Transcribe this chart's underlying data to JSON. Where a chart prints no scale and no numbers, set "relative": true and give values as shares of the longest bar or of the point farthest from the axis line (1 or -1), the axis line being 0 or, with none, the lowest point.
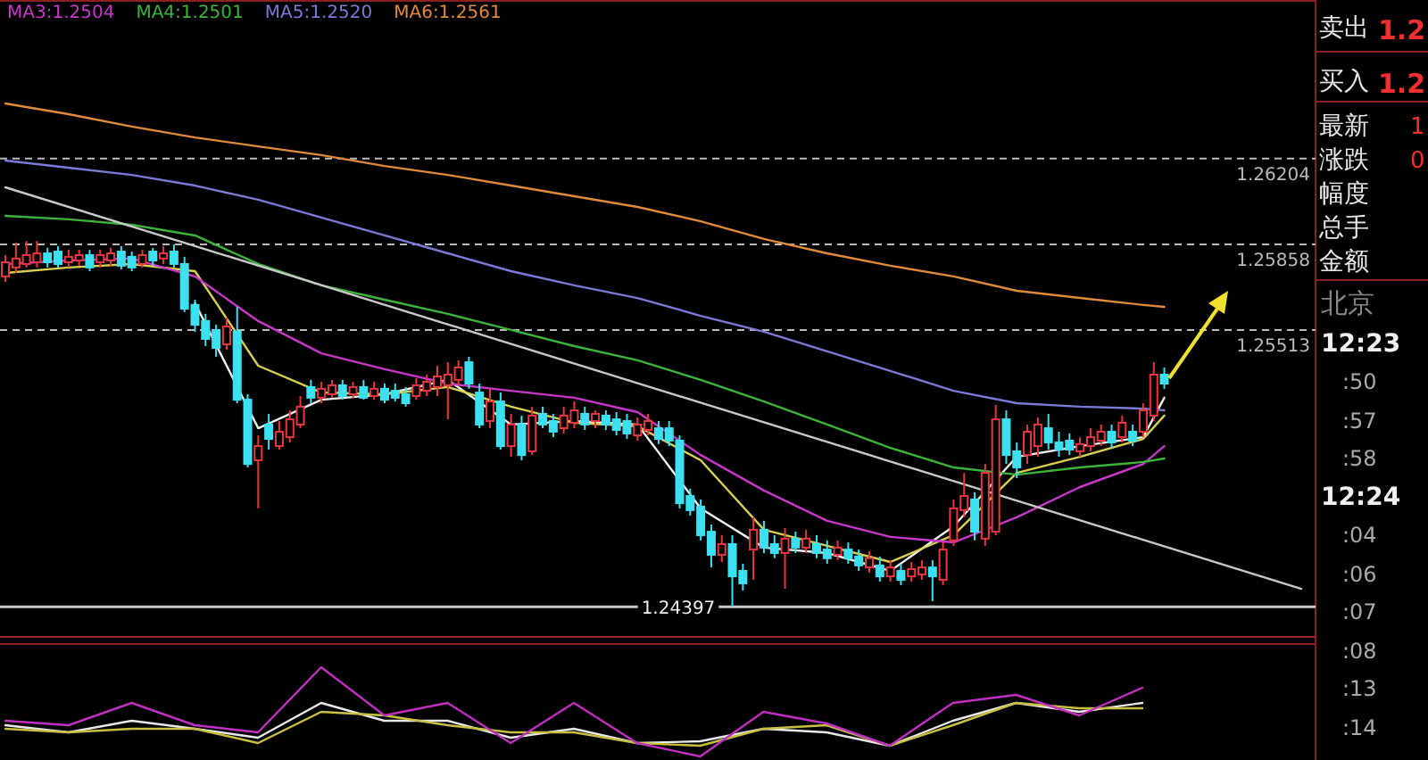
{
  "chart_data": [
    {
      "type": "candlestick",
      "categories": [
        null,
        null,
        null,
        null,
        null,
        null,
        null,
        null,
        null,
        null,
        null,
        null,
        null,
        null,
        null,
        null,
        null,
        null,
        null,
        null,
        null,
        null,
        null,
        null,
        null,
        null,
        null,
        null,
        null,
        null,
        null,
        null,
        null,
        null,
        null,
        null,
        null,
        null,
        null,
        null,
        null,
        null,
        null,
        null,
        null,
        null,
        null,
        null,
        null,
        null,
        null,
        null,
        null,
        null,
        null,
        null,
        null,
        null,
        null,
        null,
        null,
        null,
        null,
        null,
        null,
        null,
        null,
        null,
        null,
        null,
        null,
        null,
        null,
        null,
        null,
        null,
        null,
        null,
        null,
        null,
        null,
        null,
        null,
        null,
        null,
        null,
        null,
        null,
        null,
        null,
        null,
        null,
        null,
        null,
        null,
        null,
        null,
        null,
        null,
        null,
        null,
        null,
        null,
        null,
        null,
        null,
        null,
        null,
        null,
        null,
        null,
        null,
        null,
        null,
        null,
        null,
        null,
        null,
        null,
        null,
        null,
        null,
        null,
        null
      ],
      "ohlc": [
        [
          1.25729,
          1.25815,
          1.25707,
          1.25786
        ],
        [
          1.25765,
          1.25865,
          1.25743,
          1.25801
        ],
        [
          1.25779,
          1.25872,
          1.25765,
          1.25815
        ],
        [
          1.25786,
          1.25872,
          1.25765,
          1.25822
        ],
        [
          1.25822,
          1.25844,
          1.25765,
          1.25786
        ],
        [
          1.25829,
          1.25851,
          1.25765,
          1.25779
        ],
        [
          1.25786,
          1.25836,
          1.25765,
          1.25808
        ],
        [
          1.25793,
          1.25836,
          1.25772,
          1.25815
        ],
        [
          1.25815,
          1.25836,
          1.2575,
          1.25765
        ],
        [
          1.25786,
          1.25836,
          1.25765,
          1.25815
        ],
        [
          1.25793,
          1.25844,
          1.25772,
          1.25822
        ],
        [
          1.25829,
          1.25851,
          1.25757,
          1.25772
        ],
        [
          1.25808,
          1.25829,
          1.2575,
          1.25765
        ],
        [
          1.25779,
          1.25836,
          1.25765,
          1.25815
        ],
        [
          1.25829,
          1.25844,
          1.25772,
          1.25793
        ],
        [
          1.25801,
          1.25851,
          1.25779,
          1.25822
        ],
        [
          1.25829,
          1.25858,
          1.25765,
          1.25779
        ],
        [
          1.25779,
          1.25808,
          1.25585,
          1.25599
        ],
        [
          1.25614,
          1.25635,
          1.25506,
          1.25534
        ],
        [
          1.25549,
          1.25578,
          1.25448,
          1.25477
        ],
        [
          1.25513,
          1.25534,
          1.25405,
          1.25441
        ],
        [
          1.25455,
          1.25563,
          1.25434,
          1.25527
        ],
        [
          1.25506,
          1.25606,
          1.25218,
          1.25232
        ],
        [
          1.25232,
          1.25254,
          1.24959,
          1.24973
        ],
        [
          1.24988,
          1.25088,
          1.24794,
          1.25045
        ],
        [
          1.25132,
          1.25175,
          1.25031,
          1.25074
        ],
        [
          1.25045,
          1.25146,
          1.25031,
          1.25103
        ],
        [
          1.25081,
          1.25189,
          1.2506,
          1.25153
        ],
        [
          1.25132,
          1.25247,
          1.25117,
          1.25204
        ],
        [
          1.25283,
          1.25312,
          1.25218,
          1.2524
        ],
        [
          1.2524,
          1.25304,
          1.25218,
          1.25276
        ],
        [
          1.25254,
          1.25312,
          1.2524,
          1.2529
        ],
        [
          1.2529,
          1.25312,
          1.25232,
          1.25247
        ],
        [
          1.25254,
          1.25304,
          1.2524,
          1.25283
        ],
        [
          1.25283,
          1.25312,
          1.25232,
          1.2524
        ],
        [
          1.25247,
          1.25304,
          1.25232,
          1.25276
        ],
        [
          1.25276,
          1.25297,
          1.25218,
          1.25232
        ],
        [
          1.25268,
          1.25297,
          1.25225,
          1.2524
        ],
        [
          1.25254,
          1.25283,
          1.25204,
          1.25218
        ],
        [
          1.25247,
          1.25319,
          1.25232,
          1.2529
        ],
        [
          1.25268,
          1.25333,
          1.25247,
          1.25304
        ],
        [
          1.25283,
          1.25369,
          1.25247,
          1.25326
        ],
        [
          1.2529,
          1.25383,
          1.25153,
          1.25333
        ],
        [
          1.25312,
          1.25391,
          1.2529,
          1.25362
        ],
        [
          1.25383,
          1.25405,
          1.25276,
          1.25297
        ],
        [
          1.25261,
          1.25297,
          1.25117,
          1.25132
        ],
        [
          1.25146,
          1.25276,
          1.25117,
          1.25225
        ],
        [
          1.25225,
          1.25261,
          1.25031,
          1.25045
        ],
        [
          1.25045,
          1.25175,
          1.25002,
          1.25132
        ],
        [
          1.25132,
          1.25168,
          1.24988,
          1.25009
        ],
        [
          1.25024,
          1.25204,
          1.25009,
          1.25168
        ],
        [
          1.25175,
          1.25204,
          1.25117,
          1.25132
        ],
        [
          1.25146,
          1.25175,
          1.25081,
          1.25103
        ],
        [
          1.25117,
          1.25204,
          1.25096,
          1.25168
        ],
        [
          1.25139,
          1.25225,
          1.25117,
          1.25189
        ],
        [
          1.25175,
          1.25204,
          1.2511,
          1.25132
        ],
        [
          1.25146,
          1.25189,
          1.25117,
          1.25175
        ],
        [
          1.25168,
          1.25189,
          1.2511,
          1.25132
        ],
        [
          1.25153,
          1.25182,
          1.25088,
          1.2511
        ],
        [
          1.25146,
          1.25175,
          1.25074,
          1.25096
        ],
        [
          1.25088,
          1.2516,
          1.25067,
          1.25132
        ],
        [
          1.2511,
          1.25175,
          1.25088,
          1.25146
        ],
        [
          1.25117,
          1.25146,
          1.25053,
          1.25074
        ],
        [
          1.25117,
          1.25146,
          1.25045,
          1.25067
        ],
        [
          1.25067,
          1.25088,
          1.24794,
          1.24815
        ],
        [
          1.24844,
          1.24873,
          1.24765,
          1.24787
        ],
        [
          1.24801,
          1.2483,
          1.24665,
          1.24686
        ],
        [
          1.247,
          1.24729,
          1.24556,
          1.24607
        ],
        [
          1.24607,
          1.24686,
          1.24578,
          1.2465
        ],
        [
          1.2465,
          1.24686,
          1.24397,
          1.2452
        ],
        [
          1.24542,
          1.24571,
          1.24463,
          1.24492
        ],
        [
          1.24628,
          1.24758,
          1.24506,
          1.24708
        ],
        [
          1.24708,
          1.24744,
          1.24614,
          1.24636
        ],
        [
          1.2465,
          1.24686,
          1.24593,
          1.24614
        ],
        [
          1.24614,
          1.24715,
          1.2447,
          1.24672
        ],
        [
          1.24672,
          1.247,
          1.24614,
          1.24636
        ],
        [
          1.24636,
          1.24708,
          1.24614,
          1.24672
        ],
        [
          1.2465,
          1.24686,
          1.24593,
          1.24614
        ],
        [
          1.24628,
          1.24665,
          1.24571,
          1.24593
        ],
        [
          1.24607,
          1.24665,
          1.24585,
          1.24636
        ],
        [
          1.24628,
          1.24657,
          1.24571,
          1.24593
        ],
        [
          1.246,
          1.24628,
          1.24542,
          1.24564
        ],
        [
          1.24556,
          1.24621,
          1.24535,
          1.24593
        ],
        [
          1.24564,
          1.246,
          1.24499,
          1.2452
        ],
        [
          1.2452,
          1.24585,
          1.24499,
          1.24556
        ],
        [
          1.24542,
          1.24571,
          1.24485,
          1.24506
        ],
        [
          1.2452,
          1.24578,
          1.24499,
          1.24549
        ],
        [
          1.24528,
          1.24585,
          1.24506,
          1.24556
        ],
        [
          1.24556,
          1.24585,
          1.2442,
          1.2452
        ],
        [
          1.24506,
          1.24657,
          1.24485,
          1.24628
        ],
        [
          1.24665,
          1.2483,
          1.24643,
          1.24794
        ],
        [
          1.24787,
          1.24937,
          1.24758,
          1.24844
        ],
        [
          1.2483,
          1.24859,
          1.24665,
          1.247
        ],
        [
          1.24672,
          1.24973,
          1.24643,
          1.24937
        ],
        [
          1.247,
          1.25211,
          1.24686,
          1.25153
        ],
        [
          1.25153,
          1.25189,
          1.24973,
          1.25009
        ],
        [
          1.25024,
          1.2506,
          1.24916,
          1.24959
        ],
        [
          1.25009,
          1.25132,
          1.24973,
          1.25103
        ],
        [
          1.25045,
          1.2516,
          1.25002,
          1.25132
        ],
        [
          1.25117,
          1.25175,
          1.25031,
          1.2506
        ],
        [
          1.2506,
          1.25103,
          1.25002,
          1.25031
        ],
        [
          1.25067,
          1.25096,
          1.25009,
          1.25031
        ],
        [
          1.25024,
          1.25081,
          1.25002,
          1.25053
        ],
        [
          1.25045,
          1.25117,
          1.25024,
          1.25081
        ],
        [
          1.25067,
          1.25132,
          1.25045,
          1.25103
        ],
        [
          1.25103,
          1.25132,
          1.25038,
          1.2506
        ],
        [
          1.25081,
          1.25168,
          1.2506,
          1.25139
        ],
        [
          1.25103,
          1.25132,
          1.25045,
          1.25067
        ],
        [
          1.25103,
          1.25218,
          1.25081,
          1.25189
        ],
        [
          1.25168,
          1.25383,
          1.25146,
          1.25333
        ],
        [
          1.25333,
          1.25362,
          1.25276,
          1.25297
        ],
        null,
        null,
        null,
        null,
        null,
        null,
        null,
        null,
        null,
        null,
        null,
        null,
        null
      ],
      "colors": [
        "#e8383d",
        "#e8383d",
        "#e8383d",
        "#e8383d",
        "#3de0f0",
        "#3de0f0",
        "#e8383d",
        "#e8383d",
        "#3de0f0",
        "#e8383d",
        "#e8383d",
        "#3de0f0",
        "#3de0f0",
        "#e8383d",
        "#3de0f0",
        "#e8383d",
        "#3de0f0",
        "#3de0f0",
        "#3de0f0",
        "#3de0f0",
        "#3de0f0",
        "#e8383d",
        "#3de0f0",
        "#3de0f0",
        "#e8383d",
        "#3de0f0",
        "#e8383d",
        "#e8383d",
        "#e8383d",
        "#3de0f0",
        "#e8383d",
        "#e8383d",
        "#3de0f0",
        "#e8383d",
        "#3de0f0",
        "#e8383d",
        "#3de0f0",
        "#3de0f0",
        "#3de0f0",
        "#e8383d",
        "#e8383d",
        "#e8383d",
        "#e8383d",
        "#e8383d",
        "#3de0f0",
        "#3de0f0",
        "#e8383d",
        "#3de0f0",
        "#e8383d",
        "#3de0f0",
        "#e8383d",
        "#3de0f0",
        "#3de0f0",
        "#e8383d",
        "#e8383d",
        "#3de0f0",
        "#e8383d",
        "#3de0f0",
        "#3de0f0",
        "#3de0f0",
        "#e8383d",
        "#e8383d",
        "#3de0f0",
        "#3de0f0",
        "#3de0f0",
        "#3de0f0",
        "#3de0f0",
        "#3de0f0",
        "#e8383d",
        "#3de0f0",
        "#3de0f0",
        "#e8383d",
        "#3de0f0",
        "#3de0f0",
        "#e8383d",
        "#3de0f0",
        "#e8383d",
        "#3de0f0",
        "#3de0f0",
        "#e8383d",
        "#3de0f0",
        "#3de0f0",
        "#e8383d",
        "#3de0f0",
        "#e8383d",
        "#3de0f0",
        "#e8383d",
        "#e8383d",
        "#3de0f0",
        "#e8383d",
        "#e8383d",
        "#e8383d",
        "#3de0f0",
        "#e8383d",
        "#e8383d",
        "#3de0f0",
        "#3de0f0",
        "#e8383d",
        "#e8383d",
        "#3de0f0",
        "#3de0f0",
        "#3de0f0",
        "#e8383d",
        "#e8383d",
        "#e8383d",
        "#3de0f0",
        "#e8383d",
        "#3de0f0",
        "#e8383d",
        "#e8383d",
        "#3de0f0",
        null,
        null,
        null,
        null,
        null,
        null,
        null,
        null,
        null,
        null,
        null,
        null,
        null
      ],
      "series": [
        {
          "type": "line",
          "color": "#f0f0f0",
          "values": [
            null,
            null,
            null,
            null,
            null,
            null,
            null,
            null,
            null,
            null,
            null,
            null,
            null,
            null,
            null,
            null,
            null,
            null,
            1.25621,
            null,
            null,
            null,
            null,
            null,
            1.25117,
            null,
            null,
            null,
            null,
            null,
            1.25232,
            null,
            null,
            null,
            null,
            null,
            1.25254,
            null,
            null,
            null,
            null,
            null,
            1.25312,
            null,
            null,
            null,
            null,
            null,
            1.25132,
            null,
            null,
            null,
            null,
            null,
            1.25146,
            null,
            null,
            null,
            null,
            null,
            1.25132,
            null,
            null,
            null,
            null,
            null,
            1.24794,
            null,
            null,
            null,
            null,
            null,
            1.24636,
            null,
            null,
            null,
            null,
            null,
            1.24614,
            null,
            null,
            null,
            null,
            null,
            1.24542,
            null,
            null,
            null,
            null,
            null,
            1.24722,
            null,
            null,
            null,
            null,
            null,
            1.25002,
            null,
            null,
            null,
            null,
            null,
            1.25045,
            null,
            null,
            null,
            null,
            null,
            1.25081,
            null,
            1.2524,
            null,
            null,
            null,
            null,
            null,
            null,
            null,
            null,
            null,
            null,
            null,
            null,
            null
          ]
        },
        {
          "type": "line",
          "color": "#d8d050",
          "values": [
            1.25743,
            null,
            null,
            null,
            null,
            null,
            1.25765,
            null,
            null,
            null,
            null,
            null,
            1.25779,
            null,
            null,
            null,
            null,
            null,
            1.2575,
            null,
            null,
            null,
            null,
            null,
            1.25369,
            null,
            null,
            null,
            null,
            null,
            1.25261,
            null,
            null,
            null,
            null,
            null,
            1.25254,
            null,
            null,
            null,
            null,
            null,
            1.25283,
            null,
            null,
            null,
            null,
            null,
            1.25204,
            null,
            null,
            null,
            null,
            null,
            1.25139,
            null,
            null,
            null,
            null,
            null,
            1.25125,
            null,
            null,
            null,
            null,
            null,
            1.24988,
            null,
            null,
            null,
            null,
            null,
            1.24708,
            null,
            null,
            null,
            null,
            null,
            1.24643,
            null,
            null,
            null,
            null,
            null,
            1.24578,
            null,
            null,
            null,
            null,
            null,
            1.24686,
            null,
            null,
            null,
            null,
            null,
            1.24937,
            null,
            null,
            null,
            null,
            null,
            1.25002,
            null,
            null,
            null,
            null,
            null,
            1.25074,
            null,
            1.25168,
            null,
            null,
            null,
            null,
            null,
            null,
            null,
            null,
            null,
            null,
            null,
            null,
            null
          ]
        },
        {
          "type": "line",
          "name": "MA3:1.2504",
          "color": "#c838c8",
          "values": [
            1.25779,
            null,
            null,
            null,
            null,
            null,
            1.25793,
            null,
            null,
            null,
            null,
            null,
            1.25801,
            null,
            null,
            null,
            null,
            null,
            1.25729,
            null,
            null,
            null,
            null,
            null,
            1.25549,
            null,
            null,
            null,
            null,
            null,
            1.25419,
            null,
            null,
            null,
            null,
            null,
            1.25355,
            null,
            null,
            null,
            null,
            null,
            1.25297,
            null,
            null,
            null,
            null,
            null,
            1.25268,
            null,
            null,
            null,
            null,
            null,
            1.2524,
            null,
            null,
            null,
            null,
            null,
            1.25182,
            null,
            null,
            null,
            null,
            null,
            1.25009,
            null,
            null,
            null,
            null,
            null,
            1.24866,
            null,
            null,
            null,
            null,
            null,
            1.24744,
            null,
            null,
            null,
            null,
            null,
            1.24679,
            null,
            null,
            null,
            null,
            null,
            1.24657,
            null,
            null,
            null,
            null,
            null,
            1.24758,
            null,
            null,
            null,
            null,
            null,
            1.2488,
            null,
            null,
            null,
            null,
            null,
            1.24973,
            null,
            1.25045,
            null,
            null,
            null,
            null,
            null,
            null,
            null,
            null,
            null,
            null,
            null,
            null,
            null
          ]
        },
        {
          "type": "line",
          "name": "MA4:1.2501",
          "color": "#3cb43c",
          "values": [
            1.25973,
            null,
            null,
            null,
            null,
            null,
            1.25959,
            null,
            null,
            null,
            null,
            null,
            1.25937,
            null,
            null,
            null,
            null,
            null,
            1.25894,
            null,
            null,
            null,
            null,
            null,
            1.25779,
            null,
            null,
            null,
            null,
            null,
            1.25693,
            null,
            null,
            null,
            null,
            null,
            1.25635,
            null,
            null,
            null,
            null,
            null,
            1.25578,
            null,
            null,
            null,
            null,
            null,
            1.25513,
            null,
            null,
            null,
            null,
            null,
            1.25448,
            null,
            null,
            null,
            null,
            null,
            1.25391,
            null,
            null,
            null,
            null,
            null,
            1.25312,
            null,
            null,
            null,
            null,
            null,
            1.25225,
            null,
            null,
            null,
            null,
            null,
            1.25132,
            null,
            null,
            null,
            null,
            null,
            1.25038,
            null,
            null,
            null,
            null,
            null,
            1.24959,
            null,
            null,
            null,
            null,
            null,
            1.2493,
            null,
            null,
            null,
            null,
            null,
            1.24959,
            null,
            null,
            null,
            null,
            null,
            1.24981,
            null,
            1.24995,
            null,
            null,
            null,
            null,
            null,
            null,
            null,
            null,
            null,
            null,
            null,
            null,
            null
          ]
        },
        {
          "type": "line",
          "name": "MA5:1.2520",
          "color": "#7a7ad8",
          "values": [
            1.26196,
            null,
            null,
            null,
            null,
            null,
            1.26167,
            null,
            null,
            null,
            null,
            null,
            1.26138,
            null,
            null,
            null,
            null,
            null,
            1.26095,
            null,
            null,
            null,
            null,
            null,
            1.26038,
            null,
            null,
            null,
            null,
            null,
            1.25966,
            null,
            null,
            null,
            null,
            null,
            1.25894,
            null,
            null,
            null,
            null,
            null,
            1.25822,
            null,
            null,
            null,
            null,
            null,
            1.2575,
            null,
            null,
            null,
            null,
            null,
            1.25693,
            null,
            null,
            null,
            null,
            null,
            1.25642,
            null,
            null,
            null,
            null,
            null,
            1.2557,
            null,
            null,
            null,
            null,
            null,
            1.25506,
            null,
            null,
            null,
            null,
            null,
            1.25427,
            null,
            null,
            null,
            null,
            null,
            1.25348,
            null,
            null,
            null,
            null,
            null,
            1.25268,
            null,
            null,
            null,
            null,
            null,
            1.25218,
            null,
            null,
            null,
            null,
            null,
            1.25204,
            null,
            null,
            null,
            null,
            null,
            1.25196,
            null,
            1.25189,
            null,
            null,
            null,
            null,
            null,
            null,
            null,
            null,
            null,
            null,
            null,
            null,
            null
          ]
        },
        {
          "type": "line",
          "name": "MA6:1.2561",
          "color": "#e08a3c",
          "values": [
            1.26426,
            null,
            null,
            null,
            null,
            null,
            1.26383,
            null,
            null,
            null,
            null,
            null,
            1.26333,
            null,
            null,
            null,
            null,
            null,
            1.26289,
            null,
            null,
            null,
            null,
            null,
            1.26253,
            null,
            null,
            null,
            null,
            null,
            1.26218,
            null,
            null,
            null,
            null,
            null,
            1.26174,
            null,
            null,
            null,
            null,
            null,
            1.26138,
            null,
            null,
            null,
            null,
            null,
            1.26095,
            null,
            null,
            null,
            null,
            null,
            1.26052,
            null,
            null,
            null,
            null,
            null,
            1.26009,
            null,
            null,
            null,
            null,
            null,
            1.25951,
            null,
            null,
            null,
            null,
            null,
            1.2588,
            null,
            null,
            null,
            null,
            null,
            1.25822,
            null,
            null,
            null,
            null,
            null,
            1.25772,
            null,
            null,
            null,
            null,
            null,
            1.25729,
            null,
            null,
            null,
            null,
            null,
            1.25671,
            null,
            null,
            null,
            null,
            null,
            1.25642,
            null,
            null,
            null,
            null,
            null,
            1.25614,
            null,
            1.25606,
            null,
            null,
            null,
            null,
            null,
            null,
            null,
            null,
            null,
            null,
            null,
            null,
            null
          ]
        },
        {
          "type": "line",
          "color": "#c8c8c8",
          "values": [
            1.26088,
            null,
            null,
            null,
            null,
            null,
            null,
            null,
            null,
            null,
            null,
            null,
            null,
            null,
            null,
            null,
            null,
            null,
            null,
            null,
            null,
            null,
            null,
            null,
            null,
            null,
            null,
            null,
            null,
            null,
            null,
            null,
            null,
            null,
            null,
            null,
            null,
            null,
            null,
            null,
            null,
            null,
            null,
            null,
            null,
            null,
            null,
            null,
            null,
            null,
            null,
            null,
            null,
            null,
            null,
            null,
            null,
            null,
            null,
            null,
            null,
            null,
            null,
            null,
            null,
            null,
            null,
            null,
            null,
            null,
            null,
            null,
            null,
            null,
            null,
            null,
            null,
            null,
            null,
            null,
            null,
            null,
            null,
            null,
            null,
            null,
            null,
            null,
            null,
            null,
            null,
            null,
            null,
            null,
            null,
            null,
            null,
            null,
            null,
            null,
            null,
            null,
            null,
            null,
            null,
            null,
            null,
            null,
            null,
            null,
            null,
            null,
            null,
            null,
            null,
            null,
            null,
            null,
            null,
            null,
            null,
            null,
            null,
            1.2447
          ]
        }
      ],
      "ylim": [
        1.24276,
        1.26843
      ],
      "yticks": [
        1.25513,
        1.25858,
        1.26204
      ],
      "grid": "y",
      "tick_labels": "y",
      "legend": "top left",
      "ref_lines": [
        {
          "axis": "y",
          "value": 1.24397,
          "label": "1.24397",
          "color": "#c8c8c8"
        }
      ]
    },
    {
      "type": "other",
      "annotations": [
        "卖出",
        "1.2",
        "买入",
        "1.2",
        "最新",
        "1",
        "涨跌",
        "0",
        "幅度",
        "总手",
        "金额",
        "北京",
        "12:23",
        ":50",
        ":57",
        ":58",
        "12:24",
        ":04",
        ":06",
        ":07",
        ":08",
        ":13",
        ":14"
      ]
    },
    {
      "type": "line",
      "relative": true,
      "categories": [
        null,
        null,
        null,
        null,
        null,
        null,
        null,
        null,
        null,
        null,
        null,
        null,
        null,
        null,
        null,
        null,
        null,
        null,
        null
      ],
      "series": [
        {
          "color": "#e8e8e8",
          "values": [
            0.35,
            0.27,
            0.4,
            0.31,
            0.21,
            0.6,
            0.4,
            0.4,
            0.21,
            0.31,
            0.15,
            0.17,
            0.31,
            0.27,
            0.12,
            0.4,
            0.6,
            0.5,
            0.6
          ]
        },
        {
          "color": "#c8c040",
          "values": [
            0.31,
            0.27,
            0.31,
            0.31,
            0.15,
            0.5,
            0.46,
            0.35,
            0.27,
            0.27,
            0.15,
            0.12,
            0.31,
            0.35,
            0.12,
            0.35,
            0.6,
            0.54,
            0.54
          ]
        },
        {
          "color": "#c030c0",
          "values": [
            0.4,
            0.35,
            0.6,
            0.35,
            0.27,
            1.0,
            0.46,
            0.6,
            0.15,
            0.6,
            0.15,
            0,
            0.5,
            0.37,
            0.12,
            0.6,
            0.69,
            0.46,
            0.77
          ]
        }
      ]
    }
  ]
}
